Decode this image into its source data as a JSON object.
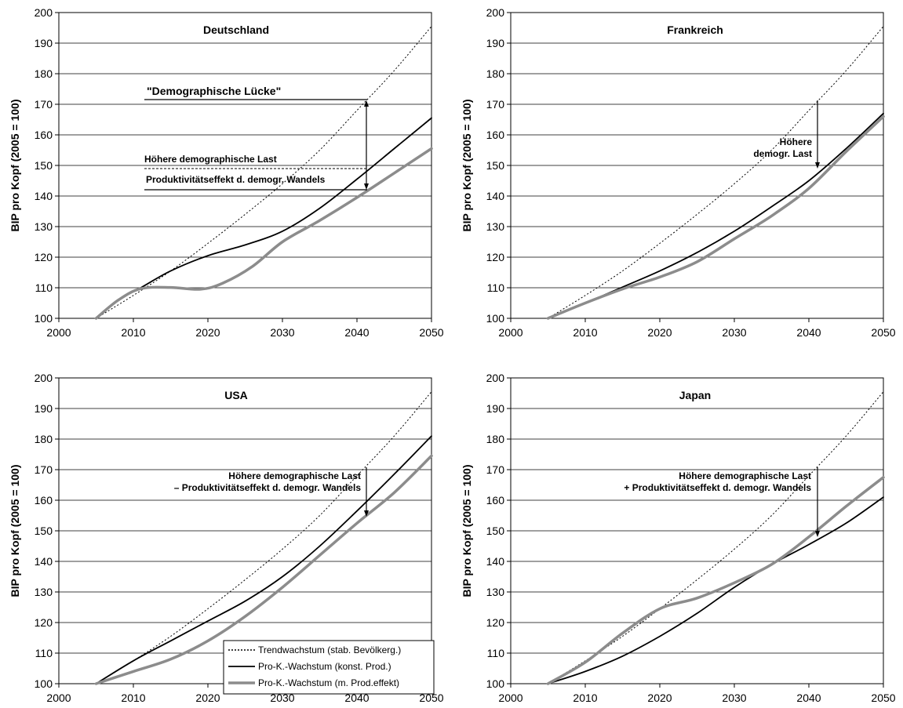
{
  "chart_data": [
    {
      "type": "line",
      "title": "Deutschland",
      "ylabel": "BIP pro Kopf (2005 = 100)",
      "xlim": [
        2000,
        2050
      ],
      "ylim": [
        100,
        200
      ],
      "xticks": [
        "2000",
        "2010",
        "2020",
        "2030",
        "2040",
        "2050"
      ],
      "yticks": [
        "100",
        "110",
        "120",
        "130",
        "140",
        "150",
        "160",
        "170",
        "180",
        "190",
        "200"
      ],
      "grid": true,
      "series": [
        {
          "name": "Trendwachstum (stab. Bevölkerg.)",
          "style": "dotted",
          "color": "#000000",
          "points": [
            [
              2005,
              100
            ],
            [
              2010,
              107.5
            ],
            [
              2015,
              115.5
            ],
            [
              2020,
              124.5
            ],
            [
              2025,
              134
            ],
            [
              2030,
              144
            ],
            [
              2035,
              155
            ],
            [
              2040,
              168
            ],
            [
              2045,
              181
            ],
            [
              2050,
              195.5
            ]
          ]
        },
        {
          "name": "Pro-K.-Wachstum (konst. Prod.)",
          "style": "solid",
          "color": "#000000",
          "points": [
            [
              2005,
              100
            ],
            [
              2008,
              106
            ],
            [
              2011,
              110
            ],
            [
              2015,
              115.5
            ],
            [
              2020,
              120.5
            ],
            [
              2025,
              124
            ],
            [
              2030,
              128.5
            ],
            [
              2035,
              136
            ],
            [
              2040,
              145.5
            ],
            [
              2045,
              155.5
            ],
            [
              2050,
              165.5
            ]
          ]
        },
        {
          "name": "Pro-K.-Wachstum (m. Prod.effekt)",
          "style": "thick",
          "color": "#8c8c8c",
          "points": [
            [
              2005,
              100
            ],
            [
              2008,
              106
            ],
            [
              2011,
              109.7
            ],
            [
              2015,
              110.1
            ],
            [
              2019,
              109.5
            ],
            [
              2022,
              111.5
            ],
            [
              2026,
              117
            ],
            [
              2030,
              125
            ],
            [
              2035,
              132
            ],
            [
              2040,
              139.5
            ],
            [
              2045,
              147.5
            ],
            [
              2050,
              155.5
            ]
          ]
        }
      ],
      "annotations": [
        {
          "text": "\"Demographische Lücke\"",
          "style": "big"
        },
        {
          "text": "Höhere demographische Last",
          "style": "small"
        },
        {
          "text": "Produktivitätseffekt d. demogr. Wandels",
          "style": "small"
        }
      ]
    },
    {
      "type": "line",
      "title": "Frankreich",
      "ylabel": "BIP pro Kopf (2005 = 100)",
      "xlim": [
        2000,
        2050
      ],
      "ylim": [
        100,
        200
      ],
      "xticks": [
        "2000",
        "2010",
        "2020",
        "2030",
        "2040",
        "2050"
      ],
      "yticks": [
        "100",
        "110",
        "120",
        "130",
        "140",
        "150",
        "160",
        "170",
        "180",
        "190",
        "200"
      ],
      "grid": true,
      "series": [
        {
          "name": "Trendwachstum (stab. Bevölkerg.)",
          "style": "dotted",
          "color": "#000000",
          "points": [
            [
              2005,
              100
            ],
            [
              2010,
              107.5
            ],
            [
              2015,
              115.5
            ],
            [
              2020,
              124.5
            ],
            [
              2025,
              134
            ],
            [
              2030,
              144
            ],
            [
              2035,
              155
            ],
            [
              2040,
              168
            ],
            [
              2045,
              181
            ],
            [
              2050,
              195.5
            ]
          ]
        },
        {
          "name": "Pro-K.-Wachstum (konst. Prod.)",
          "style": "solid",
          "color": "#000000",
          "points": [
            [
              2005,
              100
            ],
            [
              2010,
              105
            ],
            [
              2015,
              110.2
            ],
            [
              2020,
              115.5
            ],
            [
              2025,
              121.5
            ],
            [
              2030,
              128.5
            ],
            [
              2035,
              136.5
            ],
            [
              2040,
              145
            ],
            [
              2045,
              155.5
            ],
            [
              2050,
              167
            ]
          ]
        },
        {
          "name": "Pro-K.-Wachstum (m. Prod.effekt)",
          "style": "thick",
          "color": "#8c8c8c",
          "points": [
            [
              2005,
              100
            ],
            [
              2010,
              105
            ],
            [
              2015,
              109.6
            ],
            [
              2020,
              113.5
            ],
            [
              2025,
              118.5
            ],
            [
              2030,
              126
            ],
            [
              2035,
              133.5
            ],
            [
              2040,
              142.5
            ],
            [
              2045,
              154.5
            ],
            [
              2050,
              166
            ]
          ]
        }
      ],
      "annotations": [
        {
          "text": "Höhere",
          "style": "small"
        },
        {
          "text": "demogr. Last",
          "style": "small"
        }
      ]
    },
    {
      "type": "line",
      "title": "USA",
      "ylabel": "BIP pro Kopf (2005 = 100)",
      "xlim": [
        2000,
        2050
      ],
      "ylim": [
        100,
        200
      ],
      "xticks": [
        "2000",
        "2010",
        "2020",
        "2030",
        "2040",
        "2050"
      ],
      "yticks": [
        "100",
        "110",
        "120",
        "130",
        "140",
        "150",
        "160",
        "170",
        "180",
        "190",
        "200"
      ],
      "grid": true,
      "series": [
        {
          "name": "Trendwachstum (stab. Bevölkerg.)",
          "style": "dotted",
          "color": "#000000",
          "points": [
            [
              2005,
              100
            ],
            [
              2010,
              107.5
            ],
            [
              2015,
              115.5
            ],
            [
              2020,
              124.5
            ],
            [
              2025,
              134
            ],
            [
              2030,
              144
            ],
            [
              2035,
              155
            ],
            [
              2040,
              168
            ],
            [
              2045,
              181
            ],
            [
              2050,
              195.5
            ]
          ]
        },
        {
          "name": "Pro-K.-Wachstum (konst. Prod.)",
          "style": "solid",
          "color": "#000000",
          "points": [
            [
              2005,
              100
            ],
            [
              2010,
              107.5
            ],
            [
              2015,
              114
            ],
            [
              2020,
              120.5
            ],
            [
              2025,
              127
            ],
            [
              2030,
              135
            ],
            [
              2035,
              145
            ],
            [
              2040,
              156.5
            ],
            [
              2045,
              168.5
            ],
            [
              2050,
              181
            ]
          ]
        },
        {
          "name": "Pro-K.-Wachstum (m. Prod.effekt)",
          "style": "thick",
          "color": "#8c8c8c",
          "points": [
            [
              2005,
              100
            ],
            [
              2010,
              104
            ],
            [
              2015,
              108
            ],
            [
              2020,
              114
            ],
            [
              2025,
              122
            ],
            [
              2030,
              131.5
            ],
            [
              2035,
              142
            ],
            [
              2040,
              152.5
            ],
            [
              2045,
              162.5
            ],
            [
              2050,
              174.5
            ]
          ]
        }
      ],
      "annotations": [
        {
          "text": "Höhere demographische Last",
          "style": "small"
        },
        {
          "text": "– Produktivitätseffekt d. demogr. Wandels",
          "style": "small"
        }
      ],
      "legend": {
        "position": "bottom-right",
        "entries": [
          {
            "label": "Trendwachstum (stab. Bevölkerg.)",
            "style": "dotted"
          },
          {
            "label": "Pro-K.-Wachstum (konst. Prod.)",
            "style": "solid"
          },
          {
            "label": "Pro-K.-Wachstum (m. Prod.effekt)",
            "style": "thick"
          }
        ]
      }
    },
    {
      "type": "line",
      "title": "Japan",
      "ylabel": "BIP pro Kopf (2005 = 100)",
      "xlim": [
        2000,
        2050
      ],
      "ylim": [
        100,
        200
      ],
      "xticks": [
        "2000",
        "2010",
        "2020",
        "2030",
        "2040",
        "2050"
      ],
      "yticks": [
        "100",
        "110",
        "120",
        "130",
        "140",
        "150",
        "160",
        "170",
        "180",
        "190",
        "200"
      ],
      "grid": true,
      "series": [
        {
          "name": "Trendwachstum (stab. Bevölkerg.)",
          "style": "dotted",
          "color": "#000000",
          "points": [
            [
              2005,
              100
            ],
            [
              2010,
              107.5
            ],
            [
              2015,
              115.5
            ],
            [
              2020,
              124.5
            ],
            [
              2025,
              134
            ],
            [
              2030,
              144
            ],
            [
              2035,
              155
            ],
            [
              2040,
              168
            ],
            [
              2045,
              181
            ],
            [
              2050,
              195.5
            ]
          ]
        },
        {
          "name": "Pro-K.-Wachstum (konst. Prod.)",
          "style": "solid",
          "color": "#000000",
          "points": [
            [
              2005,
              100
            ],
            [
              2010,
              104
            ],
            [
              2015,
              109
            ],
            [
              2020,
              115.5
            ],
            [
              2025,
              123
            ],
            [
              2030,
              131.5
            ],
            [
              2035,
              139
            ],
            [
              2040,
              145.5
            ],
            [
              2045,
              152.5
            ],
            [
              2050,
              161
            ]
          ]
        },
        {
          "name": "Pro-K.-Wachstum (m. Prod.effekt)",
          "style": "thick",
          "color": "#8c8c8c",
          "points": [
            [
              2005,
              100
            ],
            [
              2010,
              107
            ],
            [
              2015,
              116.5
            ],
            [
              2020,
              124.5
            ],
            [
              2025,
              128
            ],
            [
              2030,
              133
            ],
            [
              2035,
              139
            ],
            [
              2040,
              148
            ],
            [
              2045,
              158
            ],
            [
              2050,
              167.5
            ]
          ]
        }
      ],
      "annotations": [
        {
          "text": "Höhere demographische Last",
          "style": "small"
        },
        {
          "text": "+ Produktivitätseffekt d. demogr. Wandels",
          "style": "small"
        }
      ]
    }
  ]
}
